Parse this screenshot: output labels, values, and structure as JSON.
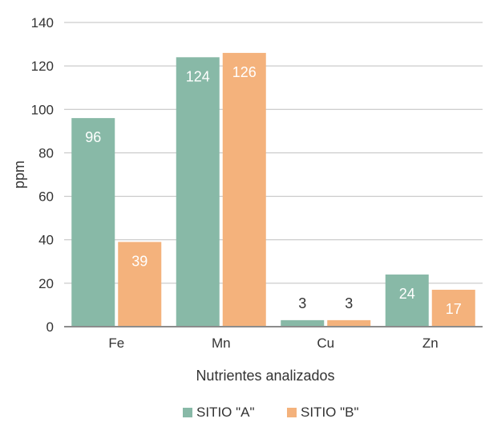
{
  "chart_data": {
    "type": "bar",
    "categories": [
      "Fe",
      "Mn",
      "Cu",
      "Zn"
    ],
    "series": [
      {
        "name": "SITIO \"A\"",
        "values": [
          96,
          124,
          3,
          24
        ],
        "color": "#88b9a7"
      },
      {
        "name": "SITIO \"B\"",
        "values": [
          39,
          126,
          3,
          17
        ],
        "color": "#f4b27c"
      }
    ],
    "xlabel": "Nutrientes analizados",
    "ylabel": "ppm",
    "ylim": [
      0,
      140
    ],
    "yticks": [
      0,
      20,
      40,
      60,
      80,
      100,
      120,
      140
    ],
    "grid": true,
    "legend_position": "bottom"
  }
}
